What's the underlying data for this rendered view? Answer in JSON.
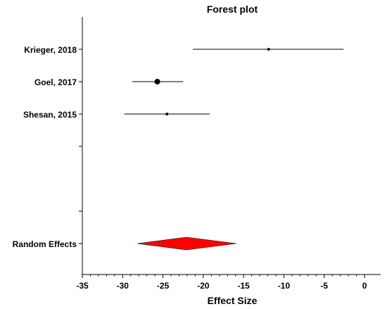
{
  "chart_data": {
    "type": "forest",
    "title": "Forest plot",
    "xlabel": "Effect Size",
    "xlim": [
      -35,
      2
    ],
    "x_ticks": [
      -35,
      -30,
      -25,
      -20,
      -15,
      -10,
      -5,
      0
    ],
    "x_tick_labels": [
      "-35",
      "-30",
      "-25",
      "-20",
      "-15",
      "-10",
      "-5",
      "0"
    ],
    "studies": [
      {
        "label": "Krieger, 2018",
        "estimate": -11.9,
        "ci_low": -21.3,
        "ci_high": -2.6,
        "weight": "small"
      },
      {
        "label": "Goel, 2017",
        "estimate": -25.7,
        "ci_low": -28.8,
        "ci_high": -22.5,
        "weight": "large"
      },
      {
        "label": "Shesan, 2015",
        "estimate": -24.5,
        "ci_low": -29.8,
        "ci_high": -19.2,
        "weight": "small"
      }
    ],
    "summary": {
      "label": "Random Effects",
      "estimate": -22.1,
      "ci_low": -28.2,
      "ci_high": -15.9,
      "color": "#ff0000"
    },
    "grid": false
  }
}
